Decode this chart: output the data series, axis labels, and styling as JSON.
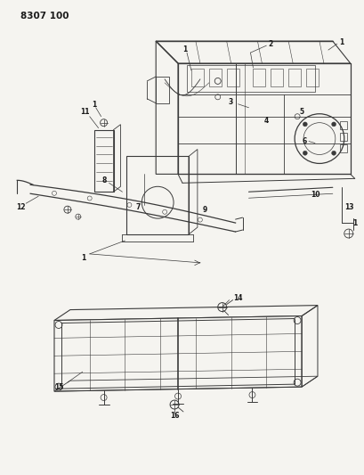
{
  "title": "8307 100",
  "bg_color": "#f5f4f0",
  "line_color": "#3a3a3a",
  "text_color": "#1a1a1a",
  "fig_width": 4.1,
  "fig_height": 5.33,
  "dpi": 100
}
